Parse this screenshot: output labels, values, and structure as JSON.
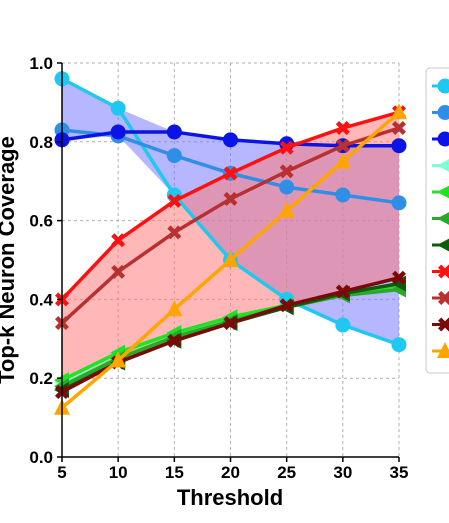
{
  "chart_data": {
    "type": "line",
    "title": "",
    "xlabel": "Threshold",
    "ylabel": "Top-k Neuron Coverage",
    "xlim": [
      5,
      35
    ],
    "ylim": [
      0,
      1.0
    ],
    "x_ticks": [
      "5",
      "10",
      "15",
      "20",
      "25",
      "30",
      "35"
    ],
    "y_ticks": [
      "0.0",
      "0.2",
      "0.4",
      "0.6",
      "0.8",
      "1.0"
    ],
    "grid": true,
    "legend_placement": "right (cropped, labels not visible)",
    "x": [
      5,
      10,
      15,
      20,
      25,
      30,
      35
    ],
    "series": [
      {
        "marker": "circle",
        "color": "#1ec8f0",
        "values": [
          0.96,
          0.885,
          0.665,
          0.5,
          0.4,
          0.335,
          0.285
        ]
      },
      {
        "marker": "circle",
        "color": "#2f8fe6",
        "values": [
          0.83,
          0.815,
          0.765,
          0.72,
          0.685,
          0.665,
          0.645
        ]
      },
      {
        "marker": "circle",
        "color": "#0a14e6",
        "values": [
          0.805,
          0.825,
          0.825,
          0.805,
          0.795,
          0.79,
          0.79
        ]
      },
      {
        "marker": "triangle-left",
        "color": "#7fffd4",
        "values": [
          0.19,
          0.265,
          0.315,
          0.35,
          0.385,
          0.41,
          0.43
        ]
      },
      {
        "marker": "triangle-left",
        "color": "#22e022",
        "values": [
          0.195,
          0.265,
          0.315,
          0.355,
          0.385,
          0.415,
          0.435
        ]
      },
      {
        "marker": "triangle-left",
        "color": "#2aa82a",
        "values": [
          0.18,
          0.25,
          0.305,
          0.345,
          0.38,
          0.41,
          0.425
        ]
      },
      {
        "marker": "triangle-left",
        "color": "#0b5c0b",
        "values": [
          0.17,
          0.24,
          0.295,
          0.34,
          0.38,
          0.415,
          0.44
        ]
      },
      {
        "marker": "x",
        "color": "#ff1010",
        "values": [
          0.4,
          0.55,
          0.65,
          0.72,
          0.785,
          0.835,
          0.875
        ]
      },
      {
        "marker": "x",
        "color": "#b83030",
        "values": [
          0.34,
          0.47,
          0.57,
          0.655,
          0.725,
          0.79,
          0.835
        ]
      },
      {
        "marker": "x",
        "color": "#7a0a0a",
        "values": [
          0.165,
          0.24,
          0.295,
          0.34,
          0.385,
          0.42,
          0.455
        ]
      },
      {
        "marker": "triangle-up",
        "color": "#ffa500",
        "values": [
          0.125,
          0.245,
          0.375,
          0.5,
          0.625,
          0.75,
          0.875
        ]
      }
    ],
    "fill_bands": [
      {
        "color": "#7b7bff",
        "opacity": 0.55,
        "between_series": [
          0,
          1,
          2
        ]
      },
      {
        "color": "#ff7b7b",
        "opacity": 0.55,
        "between_series": [
          7,
          8,
          9
        ]
      },
      {
        "color": "#6be06b",
        "opacity": 0.55,
        "between_series": [
          3,
          4,
          5,
          6
        ]
      }
    ]
  }
}
